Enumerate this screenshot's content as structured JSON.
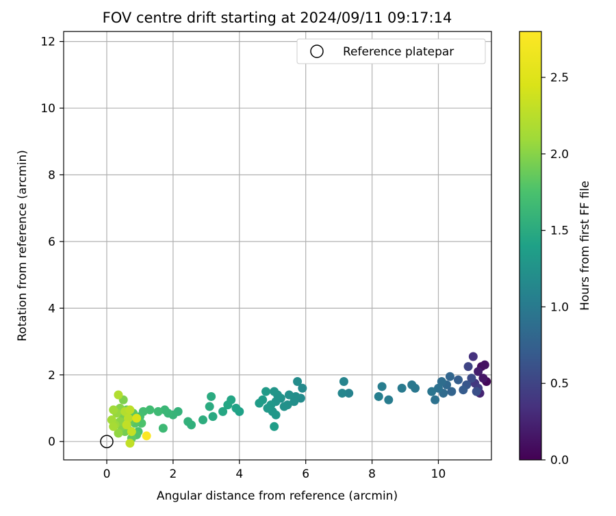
{
  "chart_data": {
    "type": "scatter",
    "title": "FOV centre drift starting at 2024/09/11 09:17:14",
    "xlabel": "Angular distance from reference (arcmin)",
    "ylabel": "Rotation from reference (arcmin)",
    "xlim": [
      -1.3,
      11.6
    ],
    "ylim": [
      -0.55,
      12.3
    ],
    "xticks": [
      "0",
      "2",
      "4",
      "6",
      "8",
      "10"
    ],
    "xtick_values": [
      0,
      2,
      4,
      6,
      8,
      10
    ],
    "yticks": [
      "0",
      "2",
      "4",
      "6",
      "8",
      "10",
      "12"
    ],
    "ytick_values": [
      0,
      2,
      4,
      6,
      8,
      10,
      12
    ],
    "grid": true,
    "legend": {
      "placement": "top-right",
      "entries": [
        "Reference platepar"
      ]
    },
    "reference_point": {
      "x": 0,
      "y": 0
    },
    "colorbar": {
      "label": "Hours from first FF file",
      "colormap": "viridis",
      "range": [
        0,
        2.8
      ],
      "tick_values": [
        0,
        0.5,
        1,
        1.5,
        2,
        2.5
      ],
      "ticks": [
        "0.0",
        "0.5",
        "1.0",
        "1.5",
        "2.0",
        "2.5"
      ]
    },
    "points": [
      {
        "x": 11.45,
        "y": 1.8,
        "h": 0.05
      },
      {
        "x": 11.3,
        "y": 2.25,
        "h": 0.1
      },
      {
        "x": 11.4,
        "y": 2.3,
        "h": 0.12
      },
      {
        "x": 11.2,
        "y": 2.1,
        "h": 0.2
      },
      {
        "x": 11.35,
        "y": 1.9,
        "h": 0.15
      },
      {
        "x": 11.25,
        "y": 1.45,
        "h": 0.25
      },
      {
        "x": 11.05,
        "y": 2.55,
        "h": 0.35
      },
      {
        "x": 11.1,
        "y": 1.75,
        "h": 0.4
      },
      {
        "x": 11.2,
        "y": 1.6,
        "h": 0.45
      },
      {
        "x": 10.9,
        "y": 2.25,
        "h": 0.5
      },
      {
        "x": 11.0,
        "y": 1.9,
        "h": 0.55
      },
      {
        "x": 11.15,
        "y": 1.5,
        "h": 0.6
      },
      {
        "x": 10.85,
        "y": 1.7,
        "h": 0.65
      },
      {
        "x": 10.75,
        "y": 1.55,
        "h": 0.7
      },
      {
        "x": 10.6,
        "y": 1.85,
        "h": 0.72
      },
      {
        "x": 10.4,
        "y": 1.5,
        "h": 0.78
      },
      {
        "x": 10.35,
        "y": 1.95,
        "h": 0.8
      },
      {
        "x": 10.25,
        "y": 1.7,
        "h": 0.82
      },
      {
        "x": 10.15,
        "y": 1.45,
        "h": 0.85
      },
      {
        "x": 10.1,
        "y": 1.8,
        "h": 0.87
      },
      {
        "x": 10.0,
        "y": 1.6,
        "h": 0.9
      },
      {
        "x": 9.9,
        "y": 1.25,
        "h": 0.92
      },
      {
        "x": 9.8,
        "y": 1.5,
        "h": 0.95
      },
      {
        "x": 9.3,
        "y": 1.6,
        "h": 0.97
      },
      {
        "x": 9.2,
        "y": 1.7,
        "h": 0.98
      },
      {
        "x": 8.9,
        "y": 1.6,
        "h": 1.0
      },
      {
        "x": 8.5,
        "y": 1.25,
        "h": 1.02
      },
      {
        "x": 8.3,
        "y": 1.65,
        "h": 1.03
      },
      {
        "x": 8.2,
        "y": 1.35,
        "h": 1.05
      },
      {
        "x": 7.3,
        "y": 1.45,
        "h": 1.08
      },
      {
        "x": 7.15,
        "y": 1.8,
        "h": 1.1
      },
      {
        "x": 7.1,
        "y": 1.45,
        "h": 1.12
      },
      {
        "x": 5.9,
        "y": 1.6,
        "h": 1.15
      },
      {
        "x": 5.85,
        "y": 1.3,
        "h": 1.17
      },
      {
        "x": 5.75,
        "y": 1.8,
        "h": 1.18
      },
      {
        "x": 5.7,
        "y": 1.35,
        "h": 1.2
      },
      {
        "x": 5.65,
        "y": 1.2,
        "h": 1.21
      },
      {
        "x": 5.5,
        "y": 1.4,
        "h": 1.22
      },
      {
        "x": 5.45,
        "y": 1.1,
        "h": 1.23
      },
      {
        "x": 5.35,
        "y": 1.05,
        "h": 1.24
      },
      {
        "x": 5.25,
        "y": 1.3,
        "h": 1.25
      },
      {
        "x": 5.15,
        "y": 1.4,
        "h": 1.26
      },
      {
        "x": 5.1,
        "y": 1.2,
        "h": 1.27
      },
      {
        "x": 5.05,
        "y": 1.5,
        "h": 1.28
      },
      {
        "x": 5.0,
        "y": 0.9,
        "h": 1.29
      },
      {
        "x": 5.1,
        "y": 0.8,
        "h": 1.3
      },
      {
        "x": 4.95,
        "y": 1.1,
        "h": 1.31
      },
      {
        "x": 4.85,
        "y": 1.0,
        "h": 1.32
      },
      {
        "x": 4.8,
        "y": 1.5,
        "h": 1.33
      },
      {
        "x": 4.7,
        "y": 1.25,
        "h": 1.34
      },
      {
        "x": 4.6,
        "y": 1.15,
        "h": 1.35
      },
      {
        "x": 5.05,
        "y": 0.45,
        "h": 1.36
      },
      {
        "x": 4.0,
        "y": 0.9,
        "h": 1.4
      },
      {
        "x": 3.9,
        "y": 1.0,
        "h": 1.42
      },
      {
        "x": 3.75,
        "y": 1.25,
        "h": 1.44
      },
      {
        "x": 3.65,
        "y": 1.1,
        "h": 1.45
      },
      {
        "x": 3.5,
        "y": 0.9,
        "h": 1.46
      },
      {
        "x": 3.2,
        "y": 0.75,
        "h": 1.48
      },
      {
        "x": 3.15,
        "y": 1.35,
        "h": 1.5
      },
      {
        "x": 3.1,
        "y": 1.05,
        "h": 1.5
      },
      {
        "x": 2.9,
        "y": 0.65,
        "h": 1.52
      },
      {
        "x": 2.55,
        "y": 0.5,
        "h": 1.55
      },
      {
        "x": 2.45,
        "y": 0.6,
        "h": 1.56
      },
      {
        "x": 2.15,
        "y": 0.9,
        "h": 1.58
      },
      {
        "x": 2.0,
        "y": 0.8,
        "h": 1.6
      },
      {
        "x": 1.85,
        "y": 0.85,
        "h": 1.62
      },
      {
        "x": 1.75,
        "y": 0.95,
        "h": 1.63
      },
      {
        "x": 1.7,
        "y": 0.4,
        "h": 1.65
      },
      {
        "x": 1.55,
        "y": 0.9,
        "h": 1.66
      },
      {
        "x": 1.3,
        "y": 0.95,
        "h": 1.68
      },
      {
        "x": 1.1,
        "y": 0.9,
        "h": 1.7
      },
      {
        "x": 1.0,
        "y": 0.75,
        "h": 1.72
      },
      {
        "x": 0.95,
        "y": 0.3,
        "h": 1.74
      },
      {
        "x": 1.05,
        "y": 0.55,
        "h": 1.76
      },
      {
        "x": 0.9,
        "y": 0.2,
        "h": 1.78
      },
      {
        "x": 0.85,
        "y": 0.55,
        "h": 1.8
      },
      {
        "x": 0.8,
        "y": 0.85,
        "h": 1.82
      },
      {
        "x": 0.75,
        "y": 0.1,
        "h": 1.84
      },
      {
        "x": 0.7,
        "y": 0.6,
        "h": 1.86
      },
      {
        "x": 0.65,
        "y": 0.35,
        "h": 1.88
      },
      {
        "x": 0.6,
        "y": 0.95,
        "h": 1.9
      },
      {
        "x": 0.55,
        "y": 0.3,
        "h": 1.92
      },
      {
        "x": 0.5,
        "y": 0.75,
        "h": 1.94
      },
      {
        "x": 0.5,
        "y": 1.25,
        "h": 1.96
      },
      {
        "x": 0.45,
        "y": 0.45,
        "h": 1.98
      },
      {
        "x": 0.4,
        "y": 1.0,
        "h": 2.0
      },
      {
        "x": 0.4,
        "y": 0.6,
        "h": 2.02
      },
      {
        "x": 0.35,
        "y": 0.25,
        "h": 2.04
      },
      {
        "x": 0.3,
        "y": 0.85,
        "h": 2.06
      },
      {
        "x": 0.25,
        "y": 0.5,
        "h": 2.08
      },
      {
        "x": 0.2,
        "y": 0.95,
        "h": 2.1
      },
      {
        "x": 0.15,
        "y": 0.65,
        "h": 2.12
      },
      {
        "x": 0.2,
        "y": 0.45,
        "h": 2.14
      },
      {
        "x": 0.35,
        "y": 1.4,
        "h": 2.2
      },
      {
        "x": 0.55,
        "y": 0.9,
        "h": 2.22
      },
      {
        "x": 0.65,
        "y": 0.7,
        "h": 2.25
      },
      {
        "x": 0.7,
        "y": 0.95,
        "h": 2.27
      },
      {
        "x": 0.6,
        "y": 0.5,
        "h": 2.3
      },
      {
        "x": 0.75,
        "y": 0.3,
        "h": 2.32
      },
      {
        "x": 0.7,
        "y": -0.05,
        "h": 2.3
      },
      {
        "x": 0.9,
        "y": 0.7,
        "h": 2.45
      },
      {
        "x": 1.2,
        "y": 0.17,
        "h": 2.78
      }
    ]
  }
}
